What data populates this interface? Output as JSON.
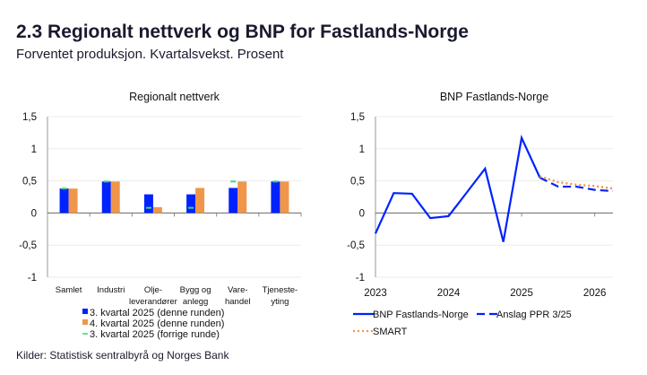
{
  "title": "2.3 Regionalt nettverk og BNP for Fastlands-Norge",
  "subtitle": "Forventet produksjon. Kvartalsvekst. Prosent",
  "source": "Kilder: Statistisk sentralbyrå og Norges Bank",
  "chart_data": [
    {
      "type": "bar",
      "title": "Regionalt nettverk",
      "categories": [
        [
          "Samlet"
        ],
        [
          "Industri"
        ],
        [
          "Olje-",
          "leverandører"
        ],
        [
          "Bygg og",
          "anlegg"
        ],
        [
          "Vare-",
          "handel"
        ],
        [
          "Tjeneste-",
          "yting"
        ]
      ],
      "ylim": [
        -1,
        1.5
      ],
      "yticks": [
        "-1",
        "-0,5",
        "0",
        "0,5",
        "1",
        "1,5"
      ],
      "ytick_values": [
        -1,
        -0.5,
        0,
        0.5,
        1,
        1.5
      ],
      "grid": true,
      "legend_placement": "bottom",
      "series": [
        {
          "name": "3. kvartal 2025 (denne runden)",
          "kind": "bar",
          "color": "#0022ff",
          "values": [
            0.38,
            0.49,
            0.29,
            0.29,
            0.39,
            0.49
          ]
        },
        {
          "name": "4. kvartal 2025 (denne runden)",
          "kind": "bar",
          "color": "#f0964b",
          "values": [
            0.38,
            0.49,
            0.09,
            0.39,
            0.49,
            0.49
          ]
        },
        {
          "name": "3. kvartal 2025 (forrige runde)",
          "kind": "marker",
          "color": "#3ed67f",
          "values": [
            0.38,
            0.49,
            0.08,
            0.08,
            0.49,
            0.49
          ]
        }
      ]
    },
    {
      "type": "line",
      "title": "BNP Fastlands-Norge",
      "x": [
        "2023Q1",
        "2023Q2",
        "2023Q3",
        "2023Q4",
        "2024Q1",
        "2024Q2",
        "2024Q3",
        "2024Q4",
        "2025Q1",
        "2025Q2",
        "2025Q3",
        "2025Q4",
        "2026Q1",
        "2026Q2"
      ],
      "xticks": [
        "2023",
        "2024",
        "2025",
        "2026"
      ],
      "ylim": [
        -1,
        1.5
      ],
      "yticks": [
        "-1",
        "-0,5",
        "0",
        "0,5",
        "1",
        "1,5"
      ],
      "ytick_values": [
        -1,
        -0.5,
        0,
        0.5,
        1,
        1.5
      ],
      "grid": true,
      "legend_placement": "bottom",
      "series": [
        {
          "name": "BNP Fastlands-Norge",
          "color": "#0022ff",
          "style": "solid",
          "values": [
            -0.32,
            0.31,
            0.3,
            -0.08,
            -0.05,
            0.32,
            0.69,
            -0.45,
            1.17,
            0.55,
            null,
            null,
            null,
            null
          ]
        },
        {
          "name": "Anslag PPR 3/25",
          "color": "#0022ff",
          "style": "dashed",
          "values": [
            null,
            null,
            null,
            null,
            null,
            null,
            null,
            null,
            null,
            0.55,
            0.41,
            0.41,
            0.36,
            0.34
          ]
        },
        {
          "name": "SMART",
          "color": "#f0964b",
          "style": "dotted",
          "values": [
            null,
            null,
            null,
            null,
            null,
            null,
            null,
            null,
            null,
            0.57,
            0.48,
            0.44,
            0.42,
            0.38
          ]
        }
      ]
    }
  ]
}
